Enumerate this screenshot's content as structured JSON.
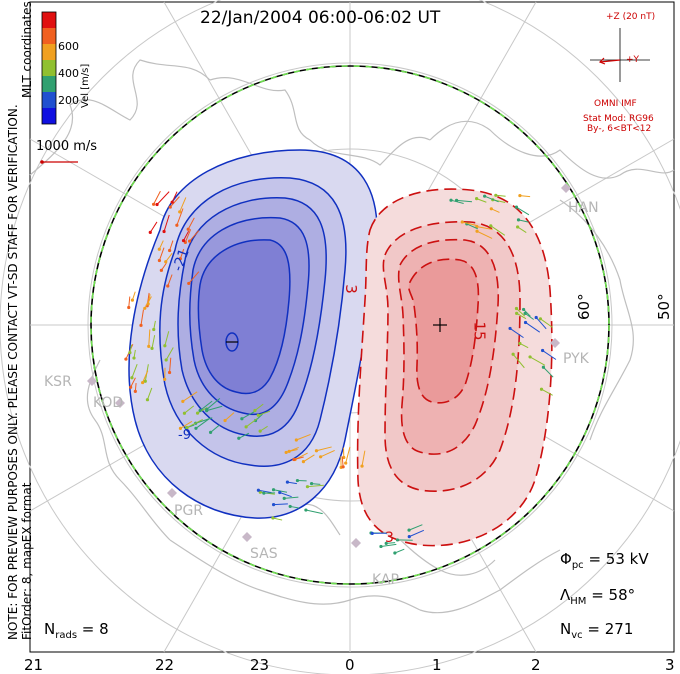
{
  "title": "22/Jan/2004 06:00-06:02 UT",
  "coordinates_label": "MLT coordinates",
  "colorbar": {
    "label": "Vel [m/s]",
    "ticks": [
      "600",
      "400",
      "200"
    ],
    "colors": [
      "#e01010",
      "#f06020",
      "#f0a020",
      "#90c030",
      "#30a070",
      "#2050d0",
      "#1010e0"
    ]
  },
  "scale_vector": "1000 m/s",
  "imf": {
    "z_label": "+Z (20 nT)",
    "y_label": "+Y",
    "source": "OMNI IMF",
    "model": "Stat Mod: RG96",
    "condition": "By-, 6<BT<12"
  },
  "notes": {
    "preview": "NOTE: FOR PREVIEW PURPOSES ONLY. PLEASE CONTACT VT-SD STAFF FOR VERIFICATION.",
    "fit": "FitOrder: 8, mapEX format"
  },
  "latitude_labels": [
    "60°",
    "50°"
  ],
  "mlt_labels": [
    "21",
    "22",
    "23",
    "0",
    "1",
    "2",
    "3"
  ],
  "stations": [
    "HAN",
    "PYK",
    "KSR",
    "KOD",
    "PGR",
    "SAS",
    "KAP"
  ],
  "contour_labels": [
    "-21",
    "-3",
    "-9",
    "3",
    "15",
    "3"
  ],
  "stats": {
    "phi_pc": "Φ",
    "phi_pc_sub": "pc",
    "phi_pc_value": " = 53 kV",
    "lambda_hm": "Λ",
    "lambda_hm_sub": "HM",
    "lambda_hm_value": " = 58°",
    "n_vc": "N",
    "n_vc_sub": "vc",
    "n_vc_value": " = 271",
    "n_rads": "N",
    "n_rads_sub": "rads",
    "n_rads_value": " = 8"
  },
  "potential": {
    "min_marker": "−",
    "max_marker": "+"
  }
}
